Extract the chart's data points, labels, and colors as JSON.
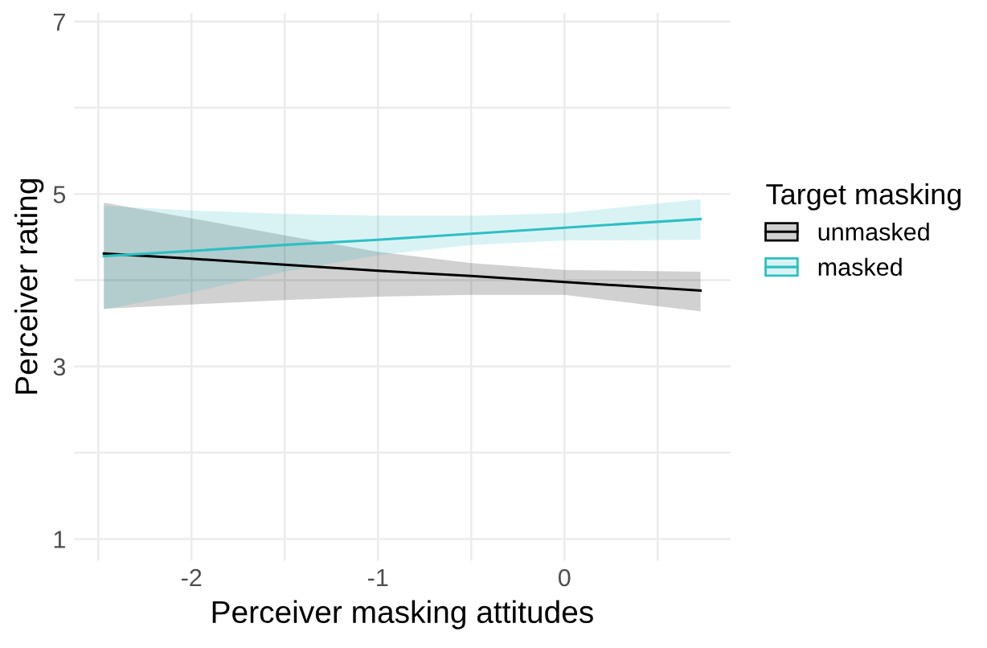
{
  "chart_data": {
    "type": "line",
    "xlabel": "Perceiver masking attitudes",
    "ylabel": "Perceiver rating",
    "legend_title": "Target masking",
    "x": [
      -2.47,
      -2,
      -1.5,
      -1,
      -0.5,
      0,
      0.73
    ],
    "series": [
      {
        "name": "unmasked",
        "color": "#000000",
        "values": [
          4.31,
          4.25,
          4.18,
          4.11,
          4.05,
          3.98,
          3.88
        ],
        "upper": [
          4.9,
          4.72,
          4.52,
          4.33,
          4.2,
          4.12,
          4.1
        ],
        "lower": [
          3.67,
          3.72,
          3.77,
          3.81,
          3.83,
          3.83,
          3.64
        ]
      },
      {
        "name": "masked",
        "color": "#2ebfc4",
        "values": [
          4.28,
          4.34,
          4.41,
          4.47,
          4.54,
          4.61,
          4.71
        ],
        "upper": [
          4.86,
          4.81,
          4.77,
          4.75,
          4.75,
          4.78,
          4.94
        ],
        "lower": [
          3.66,
          3.86,
          4.1,
          4.29,
          4.41,
          4.46,
          4.47
        ]
      }
    ],
    "xlim": [
      -2.63,
      0.89
    ],
    "ylim": [
      0.75,
      7.1
    ],
    "xticks": [
      {
        "value": -2.5,
        "label": null
      },
      -2,
      {
        "value": -1.5,
        "label": null
      },
      -1,
      {
        "value": -0.5,
        "label": null
      },
      0,
      {
        "value": 0.5,
        "label": null
      }
    ],
    "yticks": [
      1,
      {
        "value": 2,
        "label": null
      },
      3,
      {
        "value": 4,
        "label": null
      },
      5,
      {
        "value": 6,
        "label": null
      },
      7
    ],
    "grid": true,
    "legend": "right",
    "marker": "none",
    "line_style": "solid"
  }
}
